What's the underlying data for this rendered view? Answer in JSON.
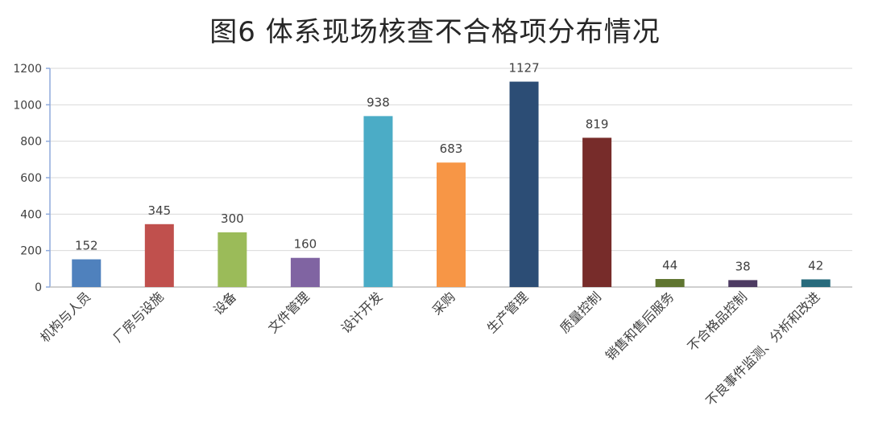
{
  "chart_data": {
    "type": "bar",
    "title": "图6 体系现场核查不合格项分布情况",
    "xlabel": "",
    "ylabel": "",
    "ylim": [
      0,
      1200
    ],
    "yticks": [
      0,
      200,
      400,
      600,
      800,
      1000,
      1200
    ],
    "grid": true,
    "legend": "none",
    "categories": [
      "机构与人员",
      "厂房与设施",
      "设备",
      "文件管理",
      "设计开发",
      "采购",
      "生产管理",
      "质量控制",
      "销售和售后服务",
      "不合格品控制",
      "不良事件监测、分析和改进"
    ],
    "values": [
      152,
      345,
      300,
      160,
      938,
      683,
      1127,
      819,
      44,
      38,
      42
    ],
    "colors": [
      "#4f81bd",
      "#c0504d",
      "#9bbb59",
      "#8064a2",
      "#4bacc6",
      "#f79646",
      "#2c4d75",
      "#772c2a",
      "#5f7530",
      "#4d3b62",
      "#276a7c"
    ]
  }
}
